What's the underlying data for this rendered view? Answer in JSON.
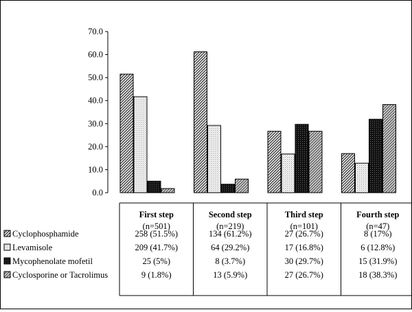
{
  "chart_data": {
    "type": "bar",
    "title": "",
    "xlabel": "",
    "ylabel": "",
    "ylim": [
      0,
      70
    ],
    "yticks": [
      "0.0",
      "10.0",
      "20.0",
      "30.0",
      "40.0",
      "50.0",
      "60.0",
      "70.0"
    ],
    "grid": false,
    "legend": "left, in table rows",
    "categories": [
      {
        "name": "First step",
        "n": "(n=501)"
      },
      {
        "name": "Second step",
        "n": "(n=219)"
      },
      {
        "name": "Third step",
        "n": "(n=101)"
      },
      {
        "name": "Fourth step",
        "n": "(n=47)"
      }
    ],
    "series": [
      {
        "name": "Cyclophosphamide",
        "pattern": "diag-dark",
        "values": [
          51.5,
          61.2,
          26.7,
          17
        ],
        "cells": [
          "258 (51.5%)",
          "134 (61.2%)",
          "27 (26.7%)",
          "8 (17%)"
        ]
      },
      {
        "name": "Levamisole",
        "pattern": "dots-light",
        "values": [
          41.7,
          29.2,
          16.8,
          12.8
        ],
        "cells": [
          "209 (41.7%)",
          "64 (29.2%)",
          "17 (16.8%)",
          "6 (12.8%)"
        ]
      },
      {
        "name": "Mycophenolate mofetil",
        "pattern": "black-dense",
        "values": [
          5,
          3.7,
          29.7,
          31.9
        ],
        "cells": [
          "25 (5%)",
          "8 (3.7%)",
          "30 (29.7%)",
          "15 (31.9%)"
        ]
      },
      {
        "name": "Cyclosporine or Tacrolimus",
        "pattern": "diag-grey",
        "values": [
          1.8,
          5.9,
          26.7,
          38.3
        ],
        "cells": [
          "9 (1.8%)",
          "13 (5.9%)",
          "27 (26.7%)",
          "18 (38.3%)"
        ]
      }
    ]
  }
}
